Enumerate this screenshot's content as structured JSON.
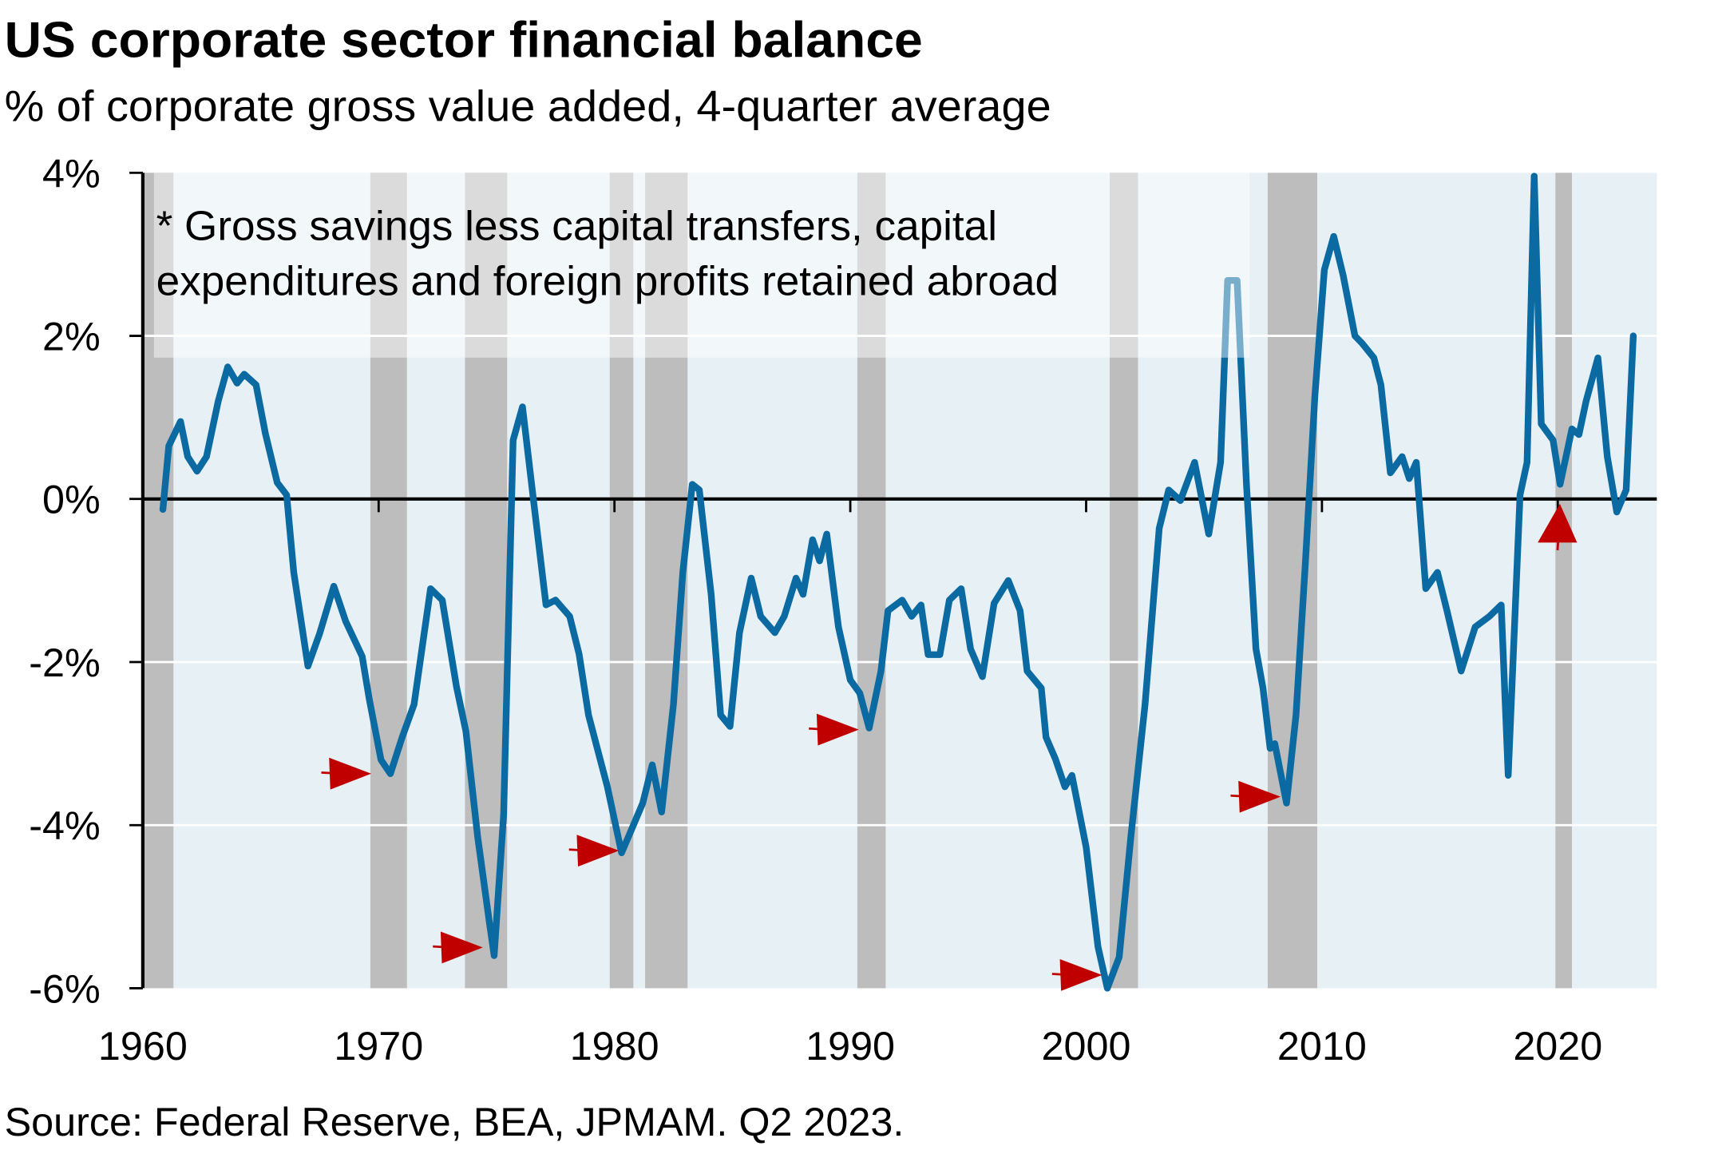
{
  "chart_data": {
    "type": "line",
    "title": "US corporate sector financial balance",
    "subtitle": "% of corporate gross value added, 4-quarter average",
    "note": [
      "* Gross savings less capital transfers, capital",
      "expenditures and foreign profits retained abroad"
    ],
    "source": "Source: Federal Reserve, BEA, JPMAM. Q2 2023.",
    "series": [
      {
        "color": "#0a6aa1",
        "x": [
          1960.85,
          1961.1,
          1961.6,
          1961.9,
          1962.3,
          1962.7,
          1963.2,
          1963.6,
          1964.0,
          1964.3,
          1964.8,
          1965.2,
          1965.7,
          1966.1,
          1966.4,
          1967.0,
          1967.5,
          1968.1,
          1968.6,
          1969.3,
          1969.6,
          1970.1,
          1970.5,
          1971.0,
          1971.5,
          1972.2,
          1972.7,
          1973.3,
          1973.7,
          1974.2,
          1974.7,
          1974.9,
          1975.3,
          1975.7,
          1976.1,
          1976.6,
          1977.1,
          1977.5,
          1978.1,
          1978.5,
          1978.9,
          1979.7,
          1980.3,
          1980.8,
          1981.2,
          1981.6,
          1982.0,
          1982.5,
          1982.9,
          1983.3,
          1983.6,
          1984.1,
          1984.5,
          1984.9,
          1985.3,
          1985.8,
          1986.2,
          1986.8,
          1987.2,
          1987.7,
          1988.0,
          1988.4,
          1988.7,
          1989.0,
          1989.5,
          1990.0,
          1990.4,
          1990.8,
          1991.3,
          1991.6,
          1992.2,
          1992.6,
          1993.0,
          1993.3,
          1993.8,
          1994.2,
          1994.7,
          1995.1,
          1995.6,
          1996.1,
          1996.7,
          1997.2,
          1997.5,
          1998.1,
          1998.3,
          1998.7,
          1999.1,
          1999.4,
          2000.0,
          2000.5,
          2000.9,
          2001.4,
          2001.9,
          2002.5,
          2003.1,
          2003.5,
          2004.0,
          2004.6,
          2005.2,
          2005.7,
          2006.0,
          2006.4,
          2006.8,
          2007.2,
          2007.5,
          2007.8,
          2008.0,
          2008.5,
          2008.9,
          2009.3,
          2009.7,
          2010.1,
          2010.5,
          2010.9,
          2011.4,
          2011.7,
          2012.2,
          2012.5,
          2012.9,
          2013.4,
          2013.7,
          2014.0,
          2014.4,
          2014.9,
          2015.3,
          2015.9,
          2016.5,
          2017.1,
          2017.6,
          2017.9,
          2018.4,
          2018.7,
          2019.0,
          2019.3,
          2019.8,
          2020.1,
          2020.6,
          2020.9,
          2021.2,
          2021.7,
          2022.1,
          2022.5,
          2022.9,
          2023.2
        ],
        "values": [
          -0.13,
          0.65,
          0.95,
          0.52,
          0.34,
          0.52,
          1.2,
          1.62,
          1.42,
          1.53,
          1.4,
          0.8,
          0.2,
          0.05,
          -0.9,
          -2.05,
          -1.65,
          -1.07,
          -1.5,
          -1.93,
          -2.45,
          -3.2,
          -3.37,
          -2.92,
          -2.52,
          -1.1,
          -1.24,
          -2.3,
          -2.85,
          -4.14,
          -5.2,
          -5.6,
          -3.87,
          0.72,
          1.13,
          -0.1,
          -1.3,
          -1.24,
          -1.44,
          -1.9,
          -2.65,
          -3.53,
          -4.34,
          -4.0,
          -3.73,
          -3.26,
          -3.84,
          -2.52,
          -0.9,
          0.18,
          0.11,
          -1.17,
          -2.65,
          -2.79,
          -1.64,
          -0.97,
          -1.44,
          -1.64,
          -1.44,
          -0.97,
          -1.17,
          -0.5,
          -0.76,
          -0.43,
          -1.57,
          -2.22,
          -2.38,
          -2.81,
          -2.11,
          -1.37,
          -1.24,
          -1.44,
          -1.3,
          -1.91,
          -1.91,
          -1.24,
          -1.1,
          -1.84,
          -2.18,
          -1.28,
          -1.0,
          -1.37,
          -2.11,
          -2.32,
          -2.92,
          -3.19,
          -3.53,
          -3.39,
          -4.27,
          -5.49,
          -6.0,
          -5.62,
          -4.14,
          -2.52,
          -0.36,
          0.11,
          -0.02,
          0.45,
          -0.43,
          0.45,
          2.68,
          2.68,
          0.18,
          -1.84,
          -2.32,
          -3.06,
          -3.0,
          -3.73,
          -2.65,
          -0.76,
          1.26,
          2.81,
          3.22,
          2.74,
          2.0,
          1.91,
          1.73,
          1.4,
          0.32,
          0.52,
          0.25,
          0.45,
          -1.1,
          -0.9,
          -1.37,
          -2.11,
          -1.57,
          -1.44,
          -1.3,
          -3.39,
          0.05,
          0.45,
          3.96,
          0.92,
          0.72,
          0.18,
          0.86,
          0.79,
          1.2,
          1.73,
          0.52,
          -0.16,
          0.11,
          2.0
        ]
      }
    ],
    "recessions": [
      [
        1960.05,
        1961.3
      ],
      [
        1969.65,
        1971.2
      ],
      [
        1973.66,
        1975.45
      ],
      [
        1979.8,
        1980.8
      ],
      [
        1981.3,
        1983.1
      ],
      [
        1990.3,
        1991.5
      ],
      [
        2001.0,
        2002.2
      ],
      [
        2007.7,
        2009.8
      ],
      [
        2019.9,
        2020.6
      ]
    ],
    "recession_color": "#bdbdbd",
    "xlim": [
      1960,
      2024.2
    ],
    "xticks": [
      1960,
      1970,
      1980,
      1990,
      2000,
      2010,
      2020
    ],
    "ylim": [
      -6,
      4
    ],
    "yticks": [
      {
        "value": -6,
        "label": "-6%"
      },
      {
        "value": -4,
        "label": "-4%"
      },
      {
        "value": -2,
        "label": "-2%"
      },
      {
        "value": 0,
        "label": "0%"
      },
      {
        "value": 2,
        "label": "2%"
      },
      {
        "value": 4,
        "label": "4%"
      }
    ],
    "grid": true
  }
}
